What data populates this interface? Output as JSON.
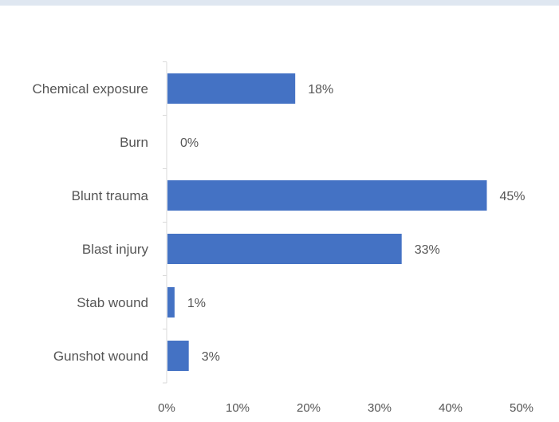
{
  "colors": {
    "bar": "#4472c4",
    "axis": "#d9d9d9",
    "text": "#555555"
  },
  "chart_data": {
    "type": "bar",
    "orientation": "horizontal",
    "categories": [
      "Chemical exposure",
      "Burn",
      "Blunt trauma",
      "Blast injury",
      "Stab wound",
      "Gunshot wound"
    ],
    "values": [
      18,
      0,
      45,
      33,
      1,
      3
    ],
    "value_labels": [
      "18%",
      "0%",
      "45%",
      "33%",
      "1%",
      "3%"
    ],
    "xlim": [
      0,
      50
    ],
    "xticks": [
      0,
      10,
      20,
      30,
      40,
      50
    ],
    "xtick_labels": [
      "0%",
      "10%",
      "20%",
      "30%",
      "40%",
      "50%"
    ],
    "grid": false,
    "legend": "none"
  }
}
